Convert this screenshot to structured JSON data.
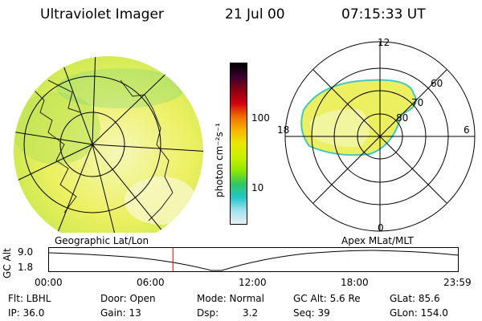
{
  "header": {
    "instrument": "Ultraviolet Imager",
    "date": "21 Jul 00",
    "time": "07:15:33 UT"
  },
  "colorbar": {
    "unit": "photon cm⁻²s⁻¹",
    "tick_100": "100",
    "tick_10": "10",
    "colors": [
      "#000000",
      "#3a0030",
      "#8a0010",
      "#d40010",
      "#f07000",
      "#f8b400",
      "#e8e800",
      "#c8f000",
      "#90e800",
      "#30c860",
      "#20c8c8",
      "#a0e0f0",
      "#e8f0f0"
    ]
  },
  "polar": {
    "label_top": "12",
    "label_bottom": "0",
    "label_left": "18",
    "label_right": "6",
    "ring_labels": [
      "60",
      "70",
      "80"
    ]
  },
  "timeline": {
    "left_caption": "Geographic Lat/Lon",
    "right_caption": "Apex MLat/MLT",
    "y_axis_label": "GC Alt",
    "y_ticks": [
      "9.0",
      "1.8"
    ],
    "x_ticks": [
      "00:00",
      "06:00",
      "12:00",
      "18:00",
      "23:59"
    ],
    "current_time_hours": 7.26,
    "marker_color": "#e00000"
  },
  "info": {
    "flt": "Flt: LBHL",
    "door": "Door: Open",
    "mode": "Mode: Normal",
    "gc_alt": "GC Alt: 5.6 Re",
    "glat": "GLat: 85.6",
    "ip": "IP: 36.0",
    "gain": "Gain: 13",
    "dsp_label": "Dsp:",
    "dsp_value": "3.2",
    "seq": "Seq: 39",
    "glon": "GLon: 154.0"
  },
  "colors": {
    "image_yellow": "#e8f040",
    "image_light": "#f4f6b0",
    "image_green": "#a8e060",
    "image_edge": "#40c8c0"
  }
}
